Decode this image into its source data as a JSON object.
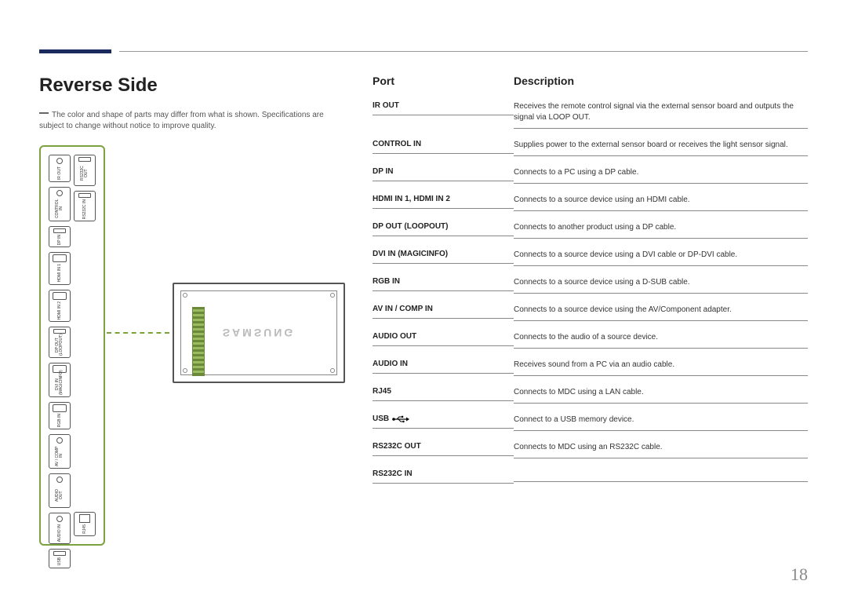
{
  "accent_color": "#1a2a5c",
  "rule_color": "#999999",
  "title": "Reverse Side",
  "disclaimer": "The color and shape of parts may differ from what is shown. Specifications are subject to change without notice to improve quality.",
  "page_number": "18",
  "table": {
    "headers": {
      "port": "Port",
      "description": "Description"
    },
    "rows": [
      {
        "port": "IR OUT",
        "desc": "Receives the remote control signal via the external sensor board and outputs the signal via LOOP OUT."
      },
      {
        "port": "CONTROL IN",
        "desc": "Supplies power to the external sensor board or receives the light sensor signal."
      },
      {
        "port": "DP IN",
        "desc": "Connects to a PC using a DP cable."
      },
      {
        "port": "HDMI IN 1, HDMI IN 2",
        "desc": "Connects to a source device using an HDMI cable."
      },
      {
        "port": "DP OUT (LOOPOUT)",
        "desc": "Connects to another product using a DP cable."
      },
      {
        "port": "DVI IN (MAGICINFO)",
        "desc": "Connects to a source device using a DVI cable or DP-DVI cable."
      },
      {
        "port": "RGB IN",
        "desc": "Connects to a source device using a D-SUB cable."
      },
      {
        "port": "AV IN / COMP IN",
        "desc": "Connects to a source device using the AV/Component adapter."
      },
      {
        "port": "AUDIO OUT",
        "desc": "Connects to the audio of a source device."
      },
      {
        "port": "AUDIO IN",
        "desc": "Receives sound from a PC via an audio cable."
      },
      {
        "port": "RJ45",
        "desc": "Connects to MDC using a LAN cable."
      },
      {
        "port": "USB",
        "desc": "Connect to a USB memory device.",
        "usb_icon": true
      },
      {
        "port": "RS232C OUT",
        "desc": "Connects to MDC using an RS232C cable."
      },
      {
        "port": "RS232C IN",
        "desc": ""
      }
    ]
  },
  "panel_ports_left": [
    {
      "label": "IR OUT",
      "shape": "jack"
    },
    {
      "label": "CONTROL IN",
      "shape": "jack"
    },
    {
      "label": "DP IN",
      "shape": "slot"
    },
    {
      "label": "HDMI IN 1",
      "shape": "wide"
    },
    {
      "label": "HDMI IN 2",
      "shape": "wide"
    },
    {
      "label": "DP OUT (LOOPOUT)",
      "shape": "slot"
    },
    {
      "label": "DVI IN (MAGICINFO)",
      "shape": "wide"
    },
    {
      "label": "RGB IN",
      "shape": "wide"
    },
    {
      "label": "AV / COMP IN",
      "shape": "jack"
    },
    {
      "label": "AUDIO OUT",
      "shape": "jack"
    },
    {
      "label": "AUDIO IN",
      "shape": "jack"
    },
    {
      "label": "USB",
      "shape": "slot"
    }
  ],
  "panel_ports_right": [
    {
      "label": "RS232C OUT",
      "shape": "slot"
    },
    {
      "label": "RS232C IN",
      "shape": "slot"
    },
    {
      "label": "RJ45",
      "shape": "eth"
    }
  ],
  "logo_text": "SAMSUNG"
}
